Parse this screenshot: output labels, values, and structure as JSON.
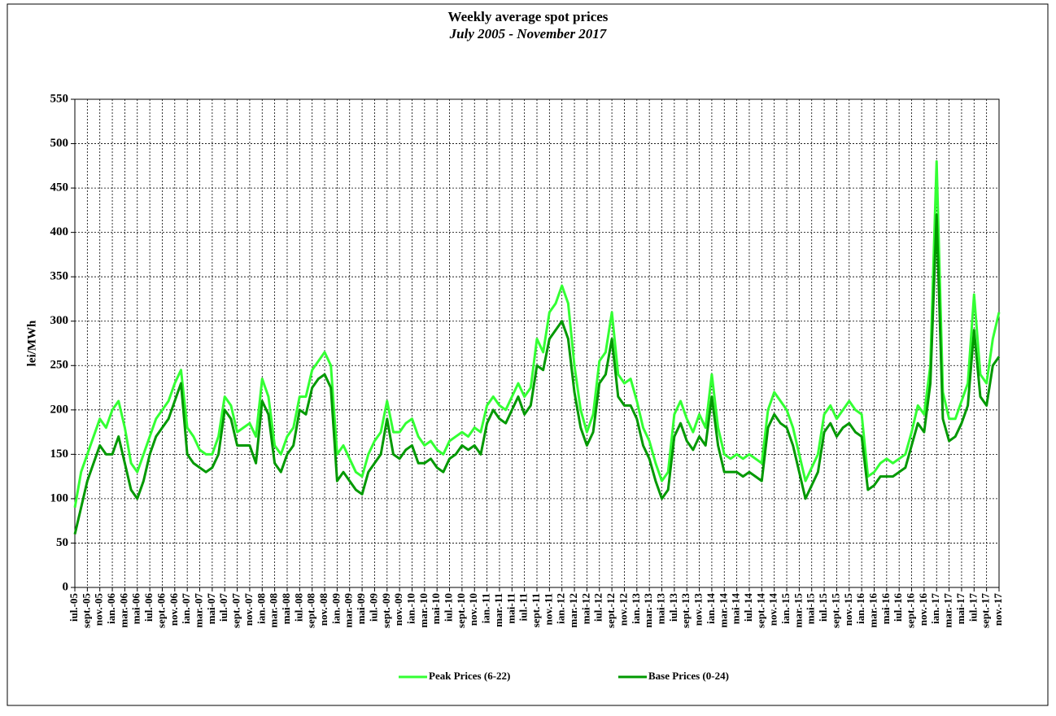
{
  "chart_data": {
    "type": "line",
    "title": "Weekly average spot prices",
    "subtitle": "July 2005 -  November 2017",
    "y_label": "lei/MWh",
    "categories": [
      "iul.-05",
      null,
      "sept.-05",
      null,
      "nov.-05",
      null,
      "ian.-06",
      null,
      "mar.-06",
      null,
      "mai-06",
      null,
      "iul.-06",
      null,
      "sept.-06",
      null,
      "nov.-06",
      null,
      "ian.-07",
      null,
      "mar.-07",
      null,
      "mai-07",
      null,
      "iul.-07",
      null,
      "sept.-07",
      null,
      "nov.-07",
      null,
      "ian.-08",
      null,
      "mar.-08",
      null,
      "mai-08",
      null,
      "iul.-08",
      null,
      "sept.-08",
      null,
      "nov.-08",
      null,
      "ian.-09",
      null,
      "mar.-09",
      null,
      "mai-09",
      null,
      "iul.-09",
      null,
      "sept.-09",
      null,
      "nov.-09",
      null,
      "ian.-10",
      null,
      "mar.-10",
      null,
      "mai-10",
      null,
      "iul.-10",
      null,
      "sept.-10",
      null,
      "nov.-10",
      null,
      "ian.-11",
      null,
      "mar.-11",
      null,
      "mai-11",
      null,
      "iul.-11",
      null,
      "sept.-11",
      null,
      "nov.-11",
      null,
      "ian.-12",
      null,
      "mar.-12",
      null,
      "mai-12",
      null,
      "iul.-12",
      null,
      "sept.-12",
      null,
      "nov.-12",
      null,
      "ian.-13",
      null,
      "mar.-13",
      null,
      "mai-13",
      null,
      "iul.-13",
      null,
      "sept.-13",
      null,
      "nov.-13",
      null,
      "ian.-14",
      null,
      "mar.-14",
      null,
      "mai-14",
      null,
      "iul.-14",
      null,
      "sept.-14",
      null,
      "nov.-14",
      null,
      "ian.-15",
      null,
      "mar.-15",
      null,
      "mai-15",
      null,
      "iul.-15",
      null,
      "sept.-15",
      null,
      "nov.-15",
      null,
      "ian.-16",
      null,
      "mar.-16",
      null,
      "mai-16",
      null,
      "iul.-16",
      null,
      "sept.-16",
      null,
      "nov.-16",
      null,
      "ian.-17",
      null,
      "mar.-17",
      null,
      "mai-17",
      null,
      "iul.-17",
      null,
      "sept.-17",
      null,
      "nov.-17"
    ],
    "series": [
      {
        "name": "Peak Prices (6-22)",
        "color": "#33ff33",
        "values": [
          90,
          130,
          150,
          170,
          190,
          180,
          200,
          210,
          180,
          140,
          130,
          150,
          170,
          190,
          200,
          210,
          230,
          245,
          180,
          170,
          155,
          150,
          150,
          170,
          215,
          205,
          175,
          180,
          185,
          170,
          235,
          215,
          160,
          150,
          170,
          180,
          215,
          215,
          245,
          255,
          265,
          250,
          150,
          160,
          145,
          130,
          125,
          150,
          165,
          175,
          210,
          175,
          175,
          185,
          190,
          170,
          160,
          165,
          155,
          150,
          165,
          170,
          175,
          170,
          180,
          175,
          205,
          215,
          205,
          200,
          215,
          230,
          215,
          225,
          280,
          265,
          310,
          320,
          340,
          320,
          250,
          200,
          175,
          195,
          255,
          265,
          310,
          240,
          230,
          235,
          210,
          180,
          165,
          140,
          120,
          130,
          195,
          210,
          190,
          175,
          195,
          180,
          240,
          180,
          150,
          145,
          150,
          145,
          150,
          145,
          140,
          200,
          220,
          210,
          200,
          180,
          150,
          120,
          135,
          150,
          195,
          205,
          190,
          200,
          210,
          200,
          195,
          125,
          130,
          140,
          145,
          140,
          145,
          150,
          175,
          205,
          195,
          250,
          480,
          220,
          190,
          190,
          210,
          230,
          330,
          240,
          230,
          280,
          310
        ]
      },
      {
        "name": "Base Prices (0-24)",
        "color": "#009900",
        "values": [
          60,
          90,
          120,
          140,
          160,
          150,
          150,
          170,
          140,
          110,
          100,
          120,
          150,
          170,
          180,
          190,
          210,
          230,
          150,
          140,
          135,
          130,
          135,
          150,
          200,
          190,
          160,
          160,
          160,
          140,
          210,
          195,
          140,
          130,
          150,
          160,
          200,
          195,
          225,
          235,
          240,
          225,
          120,
          130,
          120,
          110,
          105,
          130,
          140,
          150,
          190,
          150,
          145,
          155,
          160,
          140,
          140,
          145,
          135,
          130,
          145,
          150,
          160,
          155,
          160,
          150,
          185,
          200,
          190,
          185,
          200,
          215,
          195,
          205,
          250,
          245,
          280,
          290,
          300,
          280,
          220,
          180,
          160,
          175,
          230,
          240,
          280,
          215,
          205,
          205,
          190,
          160,
          145,
          120,
          100,
          110,
          170,
          185,
          165,
          155,
          170,
          160,
          215,
          160,
          130,
          130,
          130,
          125,
          130,
          125,
          120,
          180,
          195,
          185,
          180,
          160,
          130,
          100,
          115,
          130,
          175,
          185,
          170,
          180,
          185,
          175,
          170,
          110,
          115,
          125,
          125,
          125,
          130,
          135,
          160,
          185,
          175,
          230,
          420,
          190,
          165,
          170,
          185,
          205,
          290,
          215,
          205,
          250,
          260
        ]
      }
    ],
    "ylim": [
      0,
      550
    ],
    "yticks": [
      0,
      50,
      100,
      150,
      200,
      250,
      300,
      350,
      400,
      450,
      500,
      550
    ],
    "grid": true,
    "legend": "bottom"
  }
}
